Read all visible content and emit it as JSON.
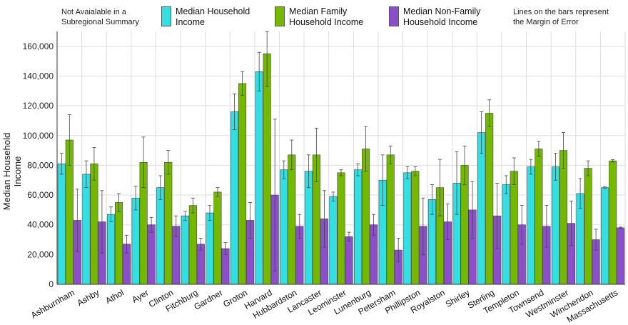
{
  "notes": {
    "left": "Not Avaialable in a\nSubregional Summary",
    "right": "Lines on the bars represent\nthe Margin of Error"
  },
  "colors": {
    "series1": "#33dfe2",
    "series2": "#74b800",
    "series3": "#8a4fc9",
    "grid": "#dddddd",
    "axis": "#333333"
  },
  "chart_data": {
    "type": "bar",
    "title": "",
    "xlabel": "",
    "ylabel": "Median Household Income",
    "ylim": [
      0,
      170000
    ],
    "yticks": [
      0,
      20000,
      40000,
      60000,
      80000,
      100000,
      120000,
      140000,
      160000
    ],
    "ytick_labels": [
      "0",
      "20,000",
      "40,000",
      "60,000",
      "80,000",
      "100,000",
      "120,000",
      "140,000",
      "160,000"
    ],
    "grid": true,
    "legend_position": "top",
    "categories": [
      "Ashburnham",
      "Ashby",
      "Athol",
      "Ayer",
      "Clinton",
      "Fitchburg",
      "Gardner",
      "Groton",
      "Harvard",
      "Hubbardston",
      "Lancaster",
      "Leominster",
      "Lunenburg",
      "Petersham",
      "Phillipston",
      "Royalston",
      "Shirley",
      "Sterling",
      "Templeton",
      "Townsend",
      "Westminster",
      "Winchendon",
      "Massachusetts"
    ],
    "series": [
      {
        "name": "Median Household\nIncome",
        "values": [
          81000,
          74000,
          47000,
          58000,
          65000,
          46000,
          48000,
          116000,
          143000,
          77000,
          76000,
          59000,
          77000,
          70000,
          75000,
          57000,
          68000,
          102000,
          67000,
          79000,
          79000,
          61000,
          65000
        ],
        "error": [
          7000,
          9000,
          5000,
          8000,
          8000,
          3000,
          5000,
          12000,
          13000,
          6000,
          11000,
          3000,
          4000,
          17000,
          4000,
          10000,
          21000,
          14000,
          6000,
          5000,
          9000,
          10000,
          500
        ]
      },
      {
        "name": "Median Family\nHousehold Income",
        "values": [
          97000,
          81000,
          55000,
          82000,
          82000,
          53000,
          62000,
          135000,
          155000,
          87000,
          87000,
          75000,
          91000,
          87000,
          76000,
          65000,
          80000,
          115000,
          76000,
          91000,
          90000,
          78000,
          83000
        ],
        "error": [
          17000,
          11000,
          6000,
          17000,
          8000,
          5000,
          3000,
          8000,
          22000,
          10000,
          18000,
          2000,
          15000,
          6000,
          3000,
          19000,
          13000,
          9000,
          9000,
          5000,
          12000,
          5000,
          800
        ]
      },
      {
        "name": "Median Non-Family\nHousehold Income",
        "values": [
          43000,
          42000,
          27000,
          40000,
          39000,
          27000,
          24000,
          43000,
          60000,
          39000,
          44000,
          32000,
          40000,
          23000,
          39000,
          42000,
          50000,
          46000,
          40000,
          39000,
          41000,
          30000,
          38000
        ],
        "error": [
          21000,
          21000,
          6000,
          5000,
          7000,
          4000,
          4000,
          12000,
          51000,
          8000,
          19000,
          3000,
          7000,
          8000,
          19000,
          12000,
          19000,
          22000,
          13000,
          14000,
          15000,
          7000,
          500
        ]
      }
    ]
  }
}
